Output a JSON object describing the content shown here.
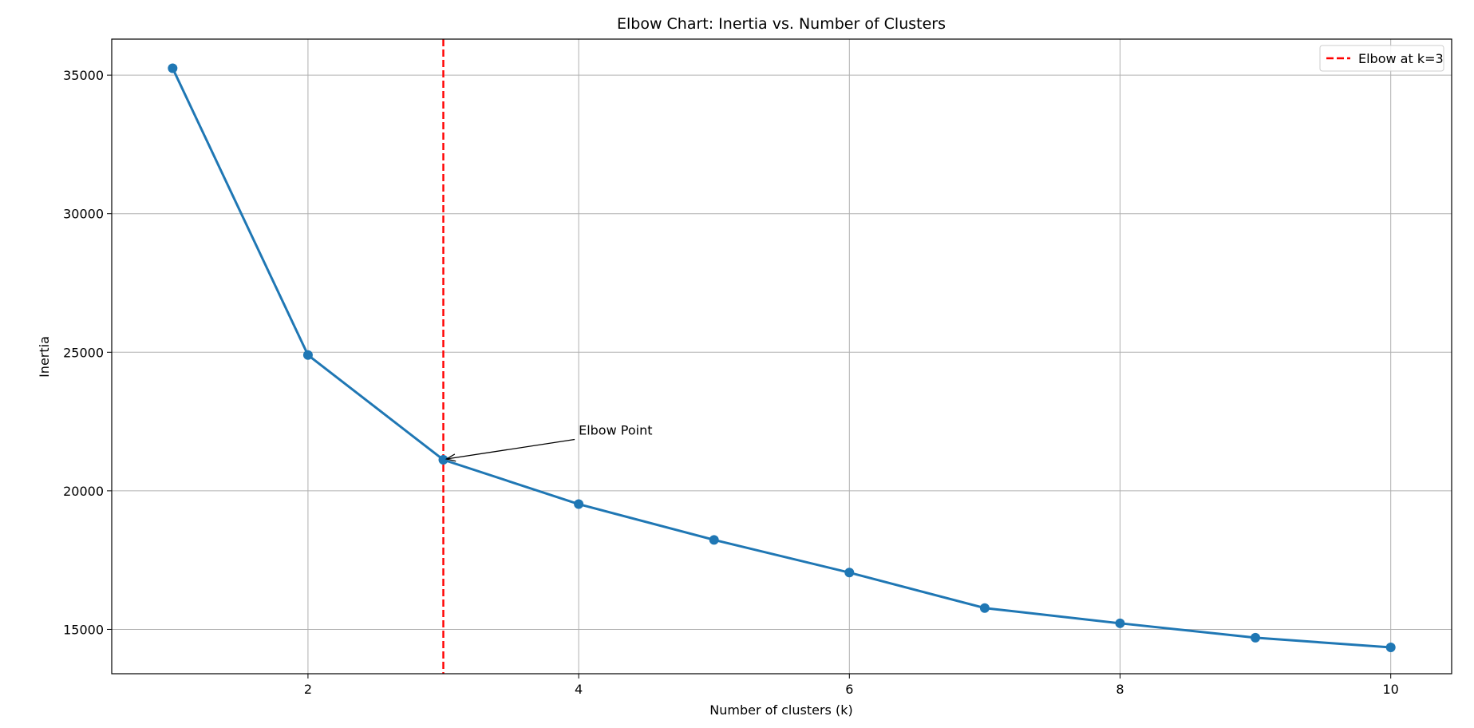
{
  "chart_data": {
    "type": "line",
    "title": "Elbow Chart: Inertia vs. Number of Clusters",
    "xlabel": "Number of clusters (k)",
    "ylabel": "Inertia",
    "xlim": [
      0.55,
      10.45
    ],
    "ylim": [
      13400,
      36300
    ],
    "x_ticks": [
      2,
      4,
      6,
      8,
      10
    ],
    "y_ticks": [
      15000,
      20000,
      25000,
      30000,
      35000
    ],
    "grid": true,
    "legend_position": "top-right",
    "series": [
      {
        "x": [
          1,
          2,
          3,
          4,
          5,
          6,
          7,
          8,
          9,
          10
        ],
        "values": [
          35250,
          24900,
          21120,
          19520,
          18230,
          17050,
          15770,
          15220,
          14700,
          14350
        ],
        "color": "#1f77b4",
        "marker": "circle"
      }
    ],
    "reference_lines": [
      {
        "axis": "x",
        "value": 3,
        "label": "Elbow at k=3",
        "color": "#ff0000",
        "style": "dashed"
      }
    ],
    "annotations": [
      {
        "text": "Elbow Point",
        "target_x": 3,
        "target_y": 21120,
        "text_x": 4,
        "text_y": 22200
      }
    ]
  }
}
